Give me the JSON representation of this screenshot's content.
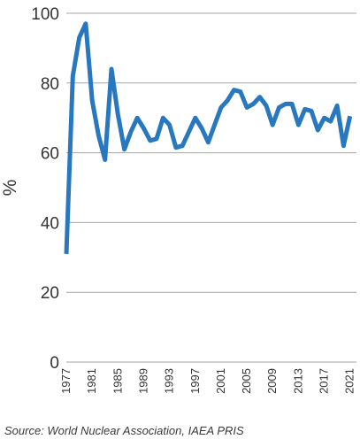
{
  "chart_data": {
    "type": "line",
    "title": "",
    "xlabel": "",
    "ylabel": "%",
    "ylim": [
      0,
      100
    ],
    "y_ticks": [
      0,
      20,
      40,
      60,
      80,
      100
    ],
    "x_ticks": [
      "1977",
      "1981",
      "1985",
      "1989",
      "1993",
      "1997",
      "2001",
      "2005",
      "2009",
      "2013",
      "2017",
      "2021"
    ],
    "grid": "horizontal",
    "legend": "none",
    "line_color": "#2878c0",
    "grid_color": "#a6a6a6",
    "x": [
      1977,
      1978,
      1979,
      1980,
      1981,
      1982,
      1983,
      1984,
      1985,
      1986,
      1987,
      1988,
      1989,
      1990,
      1991,
      1992,
      1993,
      1994,
      1995,
      1996,
      1997,
      1998,
      1999,
      2000,
      2001,
      2002,
      2003,
      2004,
      2005,
      2006,
      2007,
      2008,
      2009,
      2010,
      2011,
      2012,
      2013,
      2014,
      2015,
      2016,
      2017,
      2018,
      2019,
      2020,
      2021
    ],
    "series": [
      {
        "values": [
          31,
          82,
          93,
          97,
          75,
          65,
          58,
          84,
          71,
          61,
          66,
          70,
          67,
          63.5,
          64,
          70,
          68,
          61.5,
          62,
          66,
          70,
          67,
          63,
          68,
          73,
          75,
          78,
          77.5,
          73,
          74,
          76,
          73.5,
          68,
          73,
          74,
          74,
          68,
          72.5,
          72,
          66.5,
          70,
          69,
          73.5,
          62,
          70.5
        ]
      }
    ]
  },
  "source_text": "Source: World Nuclear Association, IAEA PRIS"
}
